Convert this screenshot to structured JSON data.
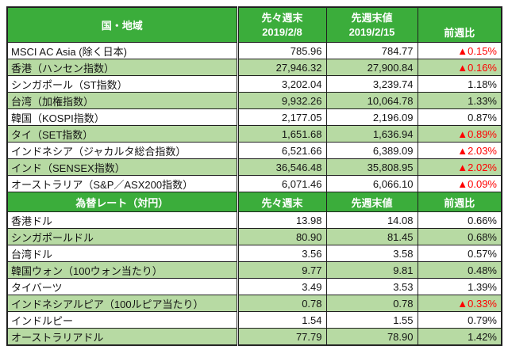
{
  "colors": {
    "header_green": "#3BAD3B",
    "row_green": "#B7DAA3",
    "negative_red": "#FF0000",
    "border_dark": "#1F1F1F"
  },
  "indices": {
    "header": {
      "region": "国・地域",
      "prev_label": "先々週末",
      "prev_date": "2019/2/8",
      "last_label": "先週末値",
      "last_date": "2019/2/15",
      "wow": "前週比"
    },
    "rows": [
      {
        "name": "MSCI AC Asia (除く日本)",
        "prev": "785.96",
        "last": "784.77",
        "chg": "▲0.15%"
      },
      {
        "name": "香港（ハンセン指数）",
        "prev": "27,946.32",
        "last": "27,900.84",
        "chg": "▲0.16%"
      },
      {
        "name": "シンガポール（ST指数）",
        "prev": "3,202.04",
        "last": "3,239.74",
        "chg": "1.18%"
      },
      {
        "name": "台湾（加権指数）",
        "prev": "9,932.26",
        "last": "10,064.78",
        "chg": "1.33%"
      },
      {
        "name": "韓国（KOSPI指数）",
        "prev": "2,177.05",
        "last": "2,196.09",
        "chg": "0.87%"
      },
      {
        "name": "タイ（SET指数）",
        "prev": "1,651.68",
        "last": "1,636.94",
        "chg": "▲0.89%"
      },
      {
        "name": "インドネシア（ジャカルタ総合指数）",
        "prev": "6,521.66",
        "last": "6,389.09",
        "chg": "▲2.03%"
      },
      {
        "name": "インド（SENSEX指数）",
        "prev": "36,546.48",
        "last": "35,808.95",
        "chg": "▲2.02%"
      },
      {
        "name": "オーストラリア（S&P／ASX200指数）",
        "prev": "6,071.46",
        "last": "6,066.10",
        "chg": "▲0.09%"
      }
    ]
  },
  "fx": {
    "header": {
      "region": "為替レート（対円）",
      "prev_label": "先々週末",
      "last_label": "先週末値",
      "wow": "前週比"
    },
    "rows": [
      {
        "name": "香港ドル",
        "prev": "13.98",
        "last": "14.08",
        "chg": "0.66%"
      },
      {
        "name": "シンガポールドル",
        "prev": "80.90",
        "last": "81.45",
        "chg": "0.68%"
      },
      {
        "name": "台湾ドル",
        "prev": "3.56",
        "last": "3.58",
        "chg": "0.57%"
      },
      {
        "name": "韓国ウォン（100ウォン当たり）",
        "prev": "9.77",
        "last": "9.81",
        "chg": "0.48%"
      },
      {
        "name": "タイバーツ",
        "prev": "3.49",
        "last": "3.53",
        "chg": "1.39%"
      },
      {
        "name": "インドネシアルピア（100ルピア当たり）",
        "prev": "0.78",
        "last": "0.78",
        "chg": "▲0.33%"
      },
      {
        "name": "インドルピー",
        "prev": "1.54",
        "last": "1.55",
        "chg": "0.79%"
      },
      {
        "name": "オーストラリアドル",
        "prev": "77.79",
        "last": "78.90",
        "chg": "1.42%"
      }
    ]
  },
  "chart_data": [
    {
      "type": "table",
      "title": "国・地域",
      "columns": [
        "国・地域",
        "先々週末 2019/2/8",
        "先週末値 2019/2/15",
        "前週比"
      ],
      "rows": [
        {
          "name": "MSCI AC Asia (除く日本)",
          "prev_close": 785.96,
          "last_close": 784.77,
          "wow_change_pct": -0.15
        },
        {
          "name": "香港（ハンセン指数）",
          "prev_close": 27946.32,
          "last_close": 27900.84,
          "wow_change_pct": -0.16
        },
        {
          "name": "シンガポール（ST指数）",
          "prev_close": 3202.04,
          "last_close": 3239.74,
          "wow_change_pct": 1.18
        },
        {
          "name": "台湾（加権指数）",
          "prev_close": 9932.26,
          "last_close": 10064.78,
          "wow_change_pct": 1.33
        },
        {
          "name": "韓国（KOSPI指数）",
          "prev_close": 2177.05,
          "last_close": 2196.09,
          "wow_change_pct": 0.87
        },
        {
          "name": "タイ（SET指数）",
          "prev_close": 1651.68,
          "last_close": 1636.94,
          "wow_change_pct": -0.89
        },
        {
          "name": "インドネシア（ジャカルタ総合指数）",
          "prev_close": 6521.66,
          "last_close": 6389.09,
          "wow_change_pct": -2.03
        },
        {
          "name": "インド（SENSEX指数）",
          "prev_close": 36546.48,
          "last_close": 35808.95,
          "wow_change_pct": -2.02
        },
        {
          "name": "オーストラリア（S&P／ASX200指数）",
          "prev_close": 6071.46,
          "last_close": 6066.1,
          "wow_change_pct": -0.09
        }
      ]
    },
    {
      "type": "table",
      "title": "為替レート（対円）",
      "columns": [
        "為替レート（対円）",
        "先々週末",
        "先週末値",
        "前週比"
      ],
      "rows": [
        {
          "name": "香港ドル",
          "prev_close": 13.98,
          "last_close": 14.08,
          "wow_change_pct": 0.66
        },
        {
          "name": "シンガポールドル",
          "prev_close": 80.9,
          "last_close": 81.45,
          "wow_change_pct": 0.68
        },
        {
          "name": "台湾ドル",
          "prev_close": 3.56,
          "last_close": 3.58,
          "wow_change_pct": 0.57
        },
        {
          "name": "韓国ウォン（100ウォン当たり）",
          "prev_close": 9.77,
          "last_close": 9.81,
          "wow_change_pct": 0.48
        },
        {
          "name": "タイバーツ",
          "prev_close": 3.49,
          "last_close": 3.53,
          "wow_change_pct": 1.39
        },
        {
          "name": "インドネシアルピア（100ルピア当たり）",
          "prev_close": 0.78,
          "last_close": 0.78,
          "wow_change_pct": -0.33
        },
        {
          "name": "インドルピー",
          "prev_close": 1.54,
          "last_close": 1.55,
          "wow_change_pct": 0.79
        },
        {
          "name": "オーストラリアドル",
          "prev_close": 77.79,
          "last_close": 78.9,
          "wow_change_pct": 1.42
        }
      ]
    }
  ]
}
